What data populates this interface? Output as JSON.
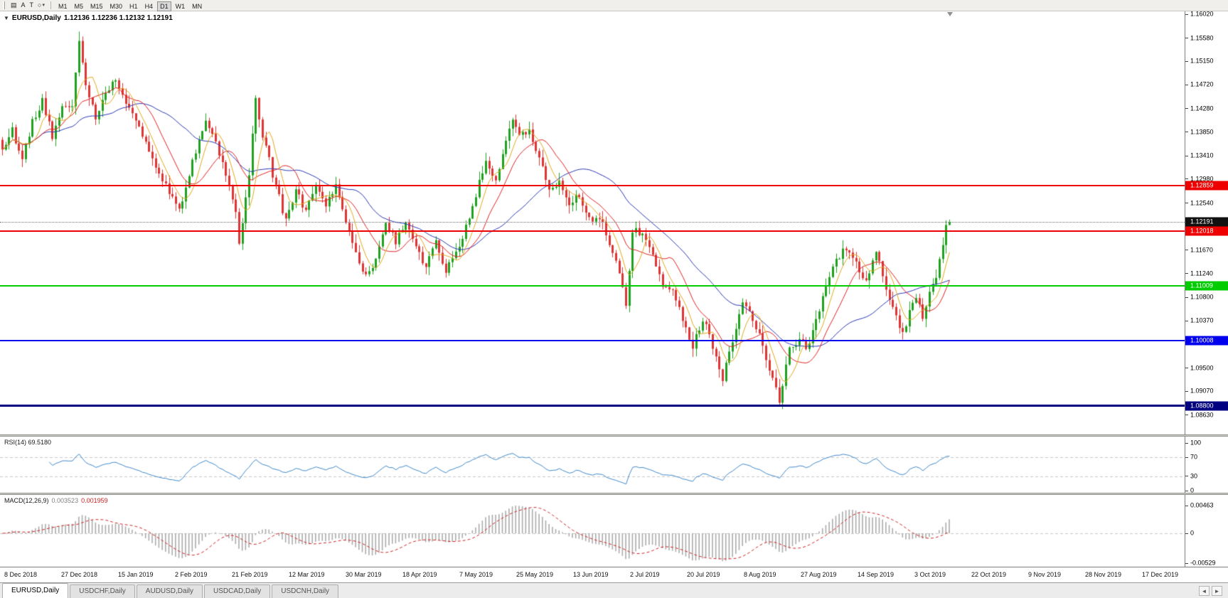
{
  "toolbar": {
    "tools": [
      {
        "id": "chart-grid",
        "glyph": "▤"
      },
      {
        "id": "text-label",
        "glyph": "A"
      },
      {
        "id": "text-tool",
        "glyph": "T"
      },
      {
        "id": "shapes",
        "glyph": "○"
      },
      {
        "id": "shapes-dropdown",
        "glyph": "▾"
      }
    ],
    "timeframes": [
      "M1",
      "M5",
      "M15",
      "M30",
      "H1",
      "H4",
      "D1",
      "W1",
      "MN"
    ],
    "active_timeframe": "D1"
  },
  "chart": {
    "one_click_arrow": "▼",
    "symbol": "EURUSD,Daily",
    "ohlc": "1.12136 1.12236 1.12132 1.12191",
    "current_price": "1.12191",
    "price_labels": [
      "1.16020",
      "1.15580",
      "1.15150",
      "1.14720",
      "1.14280",
      "1.13850",
      "1.13410",
      "1.12980",
      "1.12540",
      "1.11670",
      "1.11240",
      "1.10800",
      "1.10370",
      "1.09500",
      "1.09070",
      "1.08630"
    ],
    "levels": [
      {
        "price": "1.12859",
        "color": "#ee0000",
        "thickness": 2
      },
      {
        "price": "1.12018",
        "color": "#ee0000",
        "thickness": 2
      },
      {
        "price": "1.11009",
        "color": "#00cc00",
        "thickness": 2
      },
      {
        "price": "1.10008",
        "color": "#0000ee",
        "thickness": 2
      },
      {
        "price": "1.08800",
        "color": "#000080",
        "thickness": 3
      }
    ],
    "colors": {
      "bull": "#1fa11f",
      "bear": "#de3434",
      "ma_fast": "#dfa81e",
      "ma_mid": "#e02020",
      "ma_slow": "#2936b4",
      "price_marker_bg": "#111111"
    }
  },
  "rsi": {
    "label": "RSI(14) 69.5180",
    "scale": [
      "100",
      "70",
      "30",
      "0"
    ],
    "color": "#3f87c9"
  },
  "macd": {
    "name": "MACD(12,26,9)",
    "value_main": "0.003523",
    "value_signal": "0.001959",
    "scale_top": "0.00463",
    "scale_zero": "0",
    "scale_bottom": "-0.00529",
    "hist_color": "#ababab",
    "signal_color": "#cc2222"
  },
  "date_axis": [
    "8 Dec 2018",
    "27 Dec 2018",
    "15 Jan 2019",
    "2 Feb 2019",
    "21 Feb 2019",
    "12 Mar 2019",
    "30 Mar 2019",
    "18 Apr 2019",
    "7 May 2019",
    "25 May 2019",
    "13 Jun 2019",
    "2 Jul 2019",
    "20 Jul 2019",
    "8 Aug 2019",
    "27 Aug 2019",
    "14 Sep 2019",
    "3 Oct 2019",
    "22 Oct 2019",
    "9 Nov 2019",
    "28 Nov 2019",
    "17 Dec 2019"
  ],
  "tabs": {
    "items": [
      "EURUSD,Daily",
      "USDCHF,Daily",
      "AUDUSD,Daily",
      "USDCAD,Daily",
      "USDCNH,Daily"
    ],
    "active": "EURUSD,Daily",
    "scroll_left": "◄",
    "scroll_right": "►"
  },
  "chart_data": {
    "type": "candlestick",
    "symbol": "EURUSD",
    "timeframe": "Daily",
    "final_ohlc": {
      "open": 1.12136,
      "high": 1.12236,
      "low": 1.12132,
      "close": 1.12191
    },
    "price_axis_range": {
      "top": 1.1602,
      "bottom": 1.0863
    },
    "candle_count": 285,
    "close_anchors": [
      [
        0,
        1.135
      ],
      [
        3,
        1.1392
      ],
      [
        6,
        1.133
      ],
      [
        9,
        1.1405
      ],
      [
        12,
        1.1442
      ],
      [
        15,
        1.138
      ],
      [
        18,
        1.1425
      ],
      [
        21,
        1.144
      ],
      [
        23,
        1.1548
      ],
      [
        25,
        1.1472
      ],
      [
        28,
        1.141
      ],
      [
        31,
        1.1455
      ],
      [
        34,
        1.1478
      ],
      [
        38,
        1.1432
      ],
      [
        42,
        1.1382
      ],
      [
        46,
        1.1322
      ],
      [
        50,
        1.1272
      ],
      [
        53,
        1.1242
      ],
      [
        57,
        1.1332
      ],
      [
        61,
        1.1398
      ],
      [
        64,
        1.1362
      ],
      [
        67,
        1.1305
      ],
      [
        70,
        1.1245
      ],
      [
        71,
        1.1185
      ],
      [
        74,
        1.1302
      ],
      [
        76,
        1.1448
      ],
      [
        78,
        1.1382
      ],
      [
        80,
        1.1332
      ],
      [
        82,
        1.1285
      ],
      [
        85,
        1.1222
      ],
      [
        88,
        1.1272
      ],
      [
        91,
        1.1242
      ],
      [
        94,
        1.1292
      ],
      [
        97,
        1.1252
      ],
      [
        100,
        1.1282
      ],
      [
        103,
        1.1222
      ],
      [
        106,
        1.1162
      ],
      [
        109,
        1.1122
      ],
      [
        112,
        1.1152
      ],
      [
        115,
        1.1222
      ],
      [
        118,
        1.1182
      ],
      [
        121,
        1.1222
      ],
      [
        124,
        1.1182
      ],
      [
        127,
        1.1132
      ],
      [
        130,
        1.1182
      ],
      [
        133,
        1.1132
      ],
      [
        136,
        1.1162
      ],
      [
        139,
        1.1212
      ],
      [
        142,
        1.1272
      ],
      [
        145,
        1.1332
      ],
      [
        148,
        1.1292
      ],
      [
        151,
        1.1372
      ],
      [
        153,
        1.1412
      ],
      [
        155,
        1.1372
      ],
      [
        158,
        1.1392
      ],
      [
        161,
        1.1332
      ],
      [
        164,
        1.1282
      ],
      [
        167,
        1.1292
      ],
      [
        170,
        1.1252
      ],
      [
        173,
        1.1272
      ],
      [
        176,
        1.1222
      ],
      [
        179,
        1.1232
      ],
      [
        182,
        1.1182
      ],
      [
        185,
        1.1122
      ],
      [
        187,
        1.1062
      ],
      [
        189,
        1.1202
      ],
      [
        192,
        1.1202
      ],
      [
        195,
        1.1152
      ],
      [
        198,
        1.1102
      ],
      [
        201,
        1.1092
      ],
      [
        204,
        1.1042
      ],
      [
        207,
        1.0992
      ],
      [
        210,
        1.1042
      ],
      [
        213,
        1.0992
      ],
      [
        216,
        1.0932
      ],
      [
        219,
        1.1002
      ],
      [
        222,
        1.1072
      ],
      [
        225,
        1.1042
      ],
      [
        228,
        1.0992
      ],
      [
        231,
        1.0932
      ],
      [
        233,
        1.0892
      ],
      [
        236,
        1.0982
      ],
      [
        239,
        1.1002
      ],
      [
        241,
        1.0982
      ],
      [
        244,
        1.1042
      ],
      [
        247,
        1.1102
      ],
      [
        250,
        1.1152
      ],
      [
        253,
        1.1172
      ],
      [
        256,
        1.1142
      ],
      [
        259,
        1.1112
      ],
      [
        262,
        1.1162
      ],
      [
        264,
        1.1122
      ],
      [
        267,
        1.1062
      ],
      [
        270,
        1.1012
      ],
      [
        272,
        1.1052
      ],
      [
        274,
        1.1082
      ],
      [
        276,
        1.1042
      ],
      [
        278,
        1.1092
      ],
      [
        280,
        1.1122
      ],
      [
        282,
        1.1172
      ],
      [
        283,
        1.12136
      ],
      [
        284,
        1.12191
      ]
    ],
    "special_points": {
      "spike_high_index": 23,
      "spike_high": 1.157,
      "low_index": 233,
      "low": 1.088
    },
    "moving_averages": [
      {
        "period": 6,
        "color": "#dfa81e"
      },
      {
        "period": 13,
        "color": "#e02020"
      },
      {
        "period": 34,
        "color": "#2936b4"
      }
    ],
    "horizontal_levels": [
      1.12859,
      1.12018,
      1.11009,
      1.10008,
      1.088
    ],
    "indicators": [
      {
        "name": "RSI",
        "period": 14,
        "current": 69.518,
        "scale": [
          0,
          100
        ],
        "levels": [
          30,
          70
        ]
      },
      {
        "name": "MACD",
        "fast": 12,
        "slow": 26,
        "signal": 9,
        "current_main": 0.003523,
        "current_signal": 0.001959,
        "scale": [
          -0.00529,
          0.00463
        ]
      }
    ]
  }
}
